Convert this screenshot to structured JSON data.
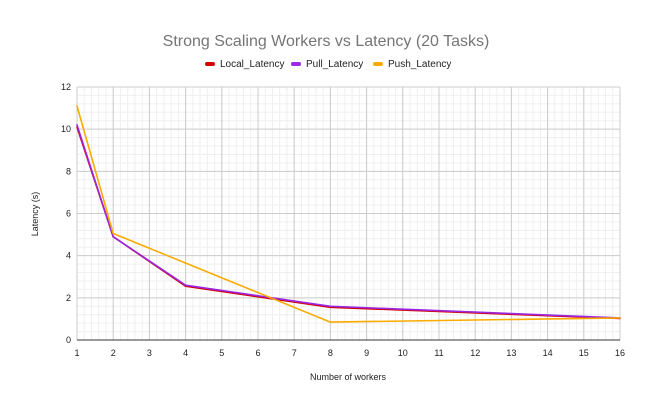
{
  "chart_data": {
    "type": "line",
    "title": "Strong Scaling Workers vs Latency (20 Tasks)",
    "xlabel": "Number of workers",
    "ylabel": "Latency (s)",
    "xlim": [
      1,
      16
    ],
    "ylim": [
      0,
      12
    ],
    "x_ticks": [
      "1",
      "2",
      "3",
      "4",
      "5",
      "6",
      "7",
      "8",
      "9",
      "10",
      "11",
      "12",
      "13",
      "14",
      "15",
      "16"
    ],
    "y_ticks": [
      "0",
      "2",
      "4",
      "6",
      "8",
      "10",
      "12"
    ],
    "grid": true,
    "legend_position": "top",
    "series": [
      {
        "name": "Local_Latency",
        "color": "#d50000",
        "points": [
          [
            1,
            10.1
          ],
          [
            2,
            4.9
          ],
          [
            4,
            2.55
          ],
          [
            8,
            1.55
          ],
          [
            16,
            1.02
          ]
        ]
      },
      {
        "name": "Pull_Latency",
        "color": "#9c27e0",
        "points": [
          [
            1,
            10.2
          ],
          [
            2,
            4.9
          ],
          [
            4,
            2.6
          ],
          [
            8,
            1.6
          ],
          [
            16,
            1.05
          ]
        ]
      },
      {
        "name": "Push_Latency",
        "color": "#f9ab00",
        "points": [
          [
            1,
            11.1
          ],
          [
            2,
            5.05
          ],
          [
            8,
            0.85
          ],
          [
            16,
            1.05
          ]
        ]
      }
    ]
  }
}
